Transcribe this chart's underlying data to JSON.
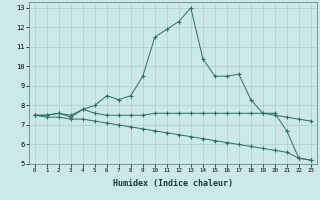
{
  "background_color": "#cce8e8",
  "grid_color": "#aacfcf",
  "line_color": "#2a7060",
  "xlabel": "Humidex (Indice chaleur)",
  "xlim": [
    -0.5,
    23.5
  ],
  "ylim": [
    5,
    13.3
  ],
  "xticks": [
    0,
    1,
    2,
    3,
    4,
    5,
    6,
    7,
    8,
    9,
    10,
    11,
    12,
    13,
    14,
    15,
    16,
    17,
    18,
    19,
    20,
    21,
    22,
    23
  ],
  "yticks": [
    5,
    6,
    7,
    8,
    9,
    10,
    11,
    12,
    13
  ],
  "series": [
    {
      "x": [
        0,
        1,
        2,
        3,
        4,
        5,
        6,
        7,
        8,
        9,
        10,
        11,
        12,
        13,
        14,
        15,
        16,
        17,
        18,
        19,
        20,
        21,
        22,
        23
      ],
      "y": [
        7.5,
        7.5,
        7.6,
        7.4,
        7.8,
        8.0,
        8.5,
        8.3,
        8.5,
        9.5,
        11.5,
        11.9,
        12.3,
        13.0,
        10.4,
        9.5,
        9.5,
        9.6,
        8.3,
        7.6,
        7.6,
        6.7,
        5.3,
        5.2
      ]
    },
    {
      "x": [
        0,
        1,
        2,
        3,
        4,
        5,
        6,
        7,
        8,
        9,
        10,
        11,
        12,
        13,
        14,
        15,
        16,
        17,
        18,
        19,
        20,
        21,
        22,
        23
      ],
      "y": [
        7.5,
        7.5,
        7.6,
        7.5,
        7.8,
        7.6,
        7.5,
        7.5,
        7.5,
        7.5,
        7.6,
        7.6,
        7.6,
        7.6,
        7.6,
        7.6,
        7.6,
        7.6,
        7.6,
        7.6,
        7.5,
        7.4,
        7.3,
        7.2
      ]
    },
    {
      "x": [
        0,
        1,
        2,
        3,
        4,
        5,
        6,
        7,
        8,
        9,
        10,
        11,
        12,
        13,
        14,
        15,
        16,
        17,
        18,
        19,
        20,
        21,
        22,
        23
      ],
      "y": [
        7.5,
        7.4,
        7.4,
        7.3,
        7.3,
        7.2,
        7.1,
        7.0,
        6.9,
        6.8,
        6.7,
        6.6,
        6.5,
        6.4,
        6.3,
        6.2,
        6.1,
        6.0,
        5.9,
        5.8,
        5.7,
        5.6,
        5.3,
        5.2
      ]
    }
  ]
}
